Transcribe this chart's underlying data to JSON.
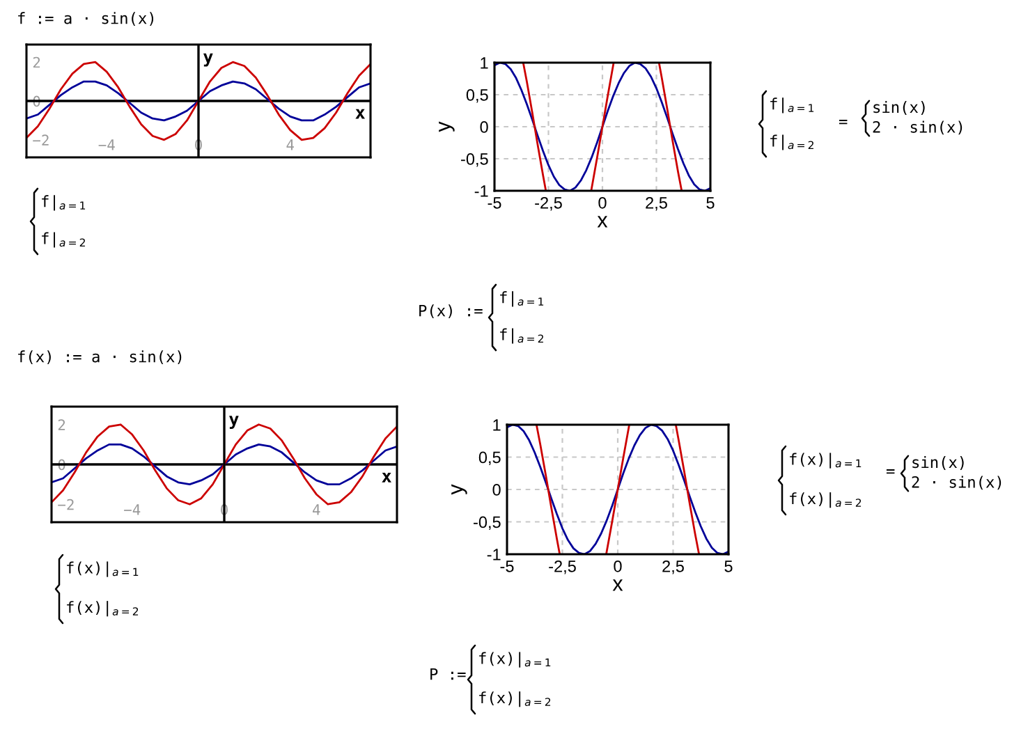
{
  "chart_data": [
    {
      "type": "line",
      "x": [
        -7.5,
        -7,
        -6.5,
        -6,
        -5.5,
        -5,
        -4.5,
        -4,
        -3.5,
        -3,
        -2.5,
        -2,
        -1.5,
        -1,
        -0.5,
        0,
        0.5,
        1,
        1.5,
        2,
        2.5,
        3,
        3.5,
        4,
        4.5,
        5,
        5.5,
        6,
        6.5,
        7,
        7.5
      ],
      "series": [
        {
          "color": "#000099",
          "values": [
            -0.9,
            -0.7,
            -0.2,
            0.3,
            0.7,
            1.0,
            1.0,
            0.8,
            0.4,
            -0.1,
            -0.6,
            -0.9,
            -1.0,
            -0.8,
            -0.5,
            0,
            0.5,
            0.8,
            1.0,
            0.9,
            0.6,
            0.1,
            -0.4,
            -0.8,
            -1.0,
            -1.0,
            -0.7,
            -0.3,
            0.2,
            0.7,
            0.9
          ]
        },
        {
          "color": "#cc0000",
          "values": [
            -1.9,
            -1.3,
            -0.4,
            0.6,
            1.4,
            1.9,
            2.0,
            1.5,
            0.7,
            -0.3,
            -1.2,
            -1.8,
            -2.0,
            -1.7,
            -1.0,
            0,
            1.0,
            1.7,
            2.0,
            1.8,
            1.2,
            0.3,
            -0.7,
            -1.5,
            -2.0,
            -1.9,
            -1.4,
            -0.6,
            0.4,
            1.3,
            1.9
          ]
        }
      ],
      "xlim": [
        -7.5,
        7.5
      ],
      "ylim": [
        -2.9,
        2.9
      ],
      "xticks": [
        {
          "value": -4,
          "label": "−4"
        },
        0,
        4
      ],
      "yticks": [
        {
          "value": -2,
          "label": "−2"
        },
        0,
        2
      ],
      "xlabel": "x",
      "ylabel": "y",
      "grid": false,
      "ref_lines": [
        {
          "axis": "y",
          "value": 0,
          "color": "#000000"
        },
        {
          "axis": "x",
          "value": 0,
          "color": "#000000"
        }
      ],
      "annotations": [
        "f := a · sin(x)",
        "f|$_{a=1}$\nf|$_{a=2}$"
      ]
    },
    {
      "type": "line",
      "x": [
        -5,
        -4.75,
        -4.5,
        -4.25,
        -4,
        -3.75,
        -3.5,
        -3.25,
        -3,
        -2.75,
        -2.5,
        -2.25,
        -2,
        -1.75,
        -1.5,
        -1.25,
        -1,
        -0.75,
        -0.5,
        -0.25,
        0,
        0.25,
        0.5,
        0.75,
        1,
        1.25,
        1.5,
        1.75,
        2,
        2.25,
        2.5,
        2.75,
        3,
        3.25,
        3.5,
        3.75,
        4,
        4.25,
        4.5,
        4.75,
        5
      ],
      "series": [
        {
          "color": "#000099",
          "values": [
            0.96,
            1.0,
            0.98,
            0.9,
            0.76,
            0.57,
            0.35,
            0.11,
            -0.14,
            -0.38,
            -0.6,
            -0.78,
            -0.91,
            -0.98,
            -1.0,
            -0.95,
            -0.84,
            -0.68,
            -0.48,
            -0.25,
            0,
            0.25,
            0.48,
            0.68,
            0.84,
            0.95,
            1.0,
            0.98,
            0.91,
            0.78,
            0.6,
            0.38,
            0.14,
            -0.11,
            -0.35,
            -0.57,
            -0.76,
            -0.9,
            -0.98,
            -1.0,
            -0.96
          ]
        },
        {
          "color": "#cc0000",
          "x": [
            -3.67,
            -3.5,
            -3.25,
            -3,
            -2.75,
            -2.62,
            -1.5,
            -0.52,
            -0.25,
            0,
            0.25,
            0.52,
            1.5,
            2.62,
            2.75,
            3,
            3.25,
            3.5,
            3.67
          ],
          "values": [
            1.0,
            0.7,
            0.22,
            -0.28,
            -0.76,
            -1.0,
            null,
            -1.0,
            -0.49,
            0,
            0.49,
            1.0,
            null,
            1.0,
            0.76,
            0.28,
            -0.22,
            -0.7,
            -1.0
          ]
        }
      ],
      "xlim": [
        -5,
        5
      ],
      "ylim": [
        -1,
        1
      ],
      "xticks": [
        -5,
        {
          "value": -2.5,
          "label": "-2,5"
        },
        0,
        {
          "value": 2.5,
          "label": "2,5"
        },
        5
      ],
      "yticks": [
        -1,
        {
          "value": -0.5,
          "label": "-0,5"
        },
        0,
        {
          "value": 0.5,
          "label": "0,5"
        },
        1
      ],
      "xlabel": "x",
      "ylabel": "y",
      "grid": true,
      "annotations": [
        "f|$_{a=1}$\nf|$_{a=2}$",
        "=",
        "sin(x)\n2 · sin(x)",
        "P(x) :=",
        "f|$_{a=1}$\nf|$_{a=2}$"
      ]
    },
    {
      "type": "line",
      "x": [
        -7.5,
        -7,
        -6.5,
        -6,
        -5.5,
        -5,
        -4.5,
        -4,
        -3.5,
        -3,
        -2.5,
        -2,
        -1.5,
        -1,
        -0.5,
        0,
        0.5,
        1,
        1.5,
        2,
        2.5,
        3,
        3.5,
        4,
        4.5,
        5,
        5.5,
        6,
        6.5,
        7,
        7.5
      ],
      "series": [
        {
          "color": "#000099",
          "values": [
            -0.9,
            -0.7,
            -0.2,
            0.3,
            0.7,
            1.0,
            1.0,
            0.8,
            0.4,
            -0.1,
            -0.6,
            -0.9,
            -1.0,
            -0.8,
            -0.5,
            0,
            0.5,
            0.8,
            1.0,
            0.9,
            0.6,
            0.1,
            -0.4,
            -0.8,
            -1.0,
            -1.0,
            -0.7,
            -0.3,
            0.2,
            0.7,
            0.9
          ]
        },
        {
          "color": "#cc0000",
          "values": [
            -1.9,
            -1.3,
            -0.4,
            0.6,
            1.4,
            1.9,
            2.0,
            1.5,
            0.7,
            -0.3,
            -1.2,
            -1.8,
            -2.0,
            -1.7,
            -1.0,
            0,
            1.0,
            1.7,
            2.0,
            1.8,
            1.2,
            0.3,
            -0.7,
            -1.5,
            -2.0,
            -1.9,
            -1.4,
            -0.6,
            0.4,
            1.3,
            1.9
          ]
        }
      ],
      "xlim": [
        -7.5,
        7.5
      ],
      "ylim": [
        -2.9,
        2.9
      ],
      "xticks": [
        {
          "value": -4,
          "label": "−4"
        },
        0,
        4
      ],
      "yticks": [
        {
          "value": -2,
          "label": "−2"
        },
        0,
        2
      ],
      "xlabel": "x",
      "ylabel": "y",
      "grid": false,
      "ref_lines": [
        {
          "axis": "y",
          "value": 0,
          "color": "#000000"
        },
        {
          "axis": "x",
          "value": 0,
          "color": "#000000"
        }
      ],
      "annotations": [
        "f(x) := a · sin(x)",
        "f(x)|$_{a=1}$\nf(x)|$_{a=2}$"
      ]
    },
    {
      "type": "line",
      "x": [
        -5,
        -4.75,
        -4.5,
        -4.25,
        -4,
        -3.75,
        -3.5,
        -3.25,
        -3,
        -2.75,
        -2.5,
        -2.25,
        -2,
        -1.75,
        -1.5,
        -1.25,
        -1,
        -0.75,
        -0.5,
        -0.25,
        0,
        0.25,
        0.5,
        0.75,
        1,
        1.25,
        1.5,
        1.75,
        2,
        2.25,
        2.5,
        2.75,
        3,
        3.25,
        3.5,
        3.75,
        4,
        4.25,
        4.5,
        4.75,
        5
      ],
      "series": [
        {
          "color": "#000099",
          "values": [
            0.96,
            1.0,
            0.98,
            0.9,
            0.76,
            0.57,
            0.35,
            0.11,
            -0.14,
            -0.38,
            -0.6,
            -0.78,
            -0.91,
            -0.98,
            -1.0,
            -0.95,
            -0.84,
            -0.68,
            -0.48,
            -0.25,
            0,
            0.25,
            0.48,
            0.68,
            0.84,
            0.95,
            1.0,
            0.98,
            0.91,
            0.78,
            0.6,
            0.38,
            0.14,
            -0.11,
            -0.35,
            -0.57,
            -0.76,
            -0.9,
            -0.98,
            -1.0,
            -0.96
          ]
        },
        {
          "color": "#cc0000",
          "x": [
            -3.67,
            -3.5,
            -3.25,
            -3,
            -2.75,
            -2.62,
            -1.5,
            -0.52,
            -0.25,
            0,
            0.25,
            0.52,
            1.5,
            2.62,
            2.75,
            3,
            3.25,
            3.5,
            3.67
          ],
          "values": [
            1.0,
            0.7,
            0.22,
            -0.28,
            -0.76,
            -1.0,
            null,
            -1.0,
            -0.49,
            0,
            0.49,
            1.0,
            null,
            1.0,
            0.76,
            0.28,
            -0.22,
            -0.7,
            -1.0
          ]
        }
      ],
      "xlim": [
        -5,
        5
      ],
      "ylim": [
        -1,
        1
      ],
      "xticks": [
        -5,
        {
          "value": -2.5,
          "label": "-2,5"
        },
        0,
        {
          "value": 2.5,
          "label": "2,5"
        },
        5
      ],
      "yticks": [
        -1,
        {
          "value": -0.5,
          "label": "-0,5"
        },
        0,
        {
          "value": 0.5,
          "label": "0,5"
        },
        1
      ],
      "xlabel": "x",
      "ylabel": "y",
      "grid": true,
      "annotations": [
        "f(x)|$_{a=1}$\nf(x)|$_{a=2}$",
        "=",
        "sin(x)\n2 · sin(x)",
        "P :=",
        "f(x)|$_{a=1}$\nf(x)|$_{a=2}$"
      ]
    }
  ]
}
